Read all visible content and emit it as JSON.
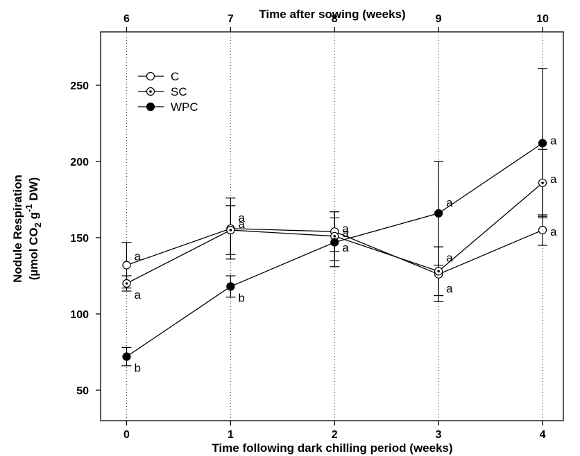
{
  "chart_data": {
    "type": "line",
    "xlabel": "Time following dark chilling period (weeks)",
    "x2label": "Time after sowing (weeks)",
    "ylabel_line1": "Nodule Respiration",
    "ylabel_line2_prefix": "(µmol CO",
    "ylabel_line2_sub": "2",
    "ylabel_line2_mid": " g",
    "ylabel_line2_sup": "-1",
    "ylabel_line2_suffix": " DW)",
    "x": [
      0,
      1,
      2,
      3,
      4
    ],
    "x_ticks": [
      "0",
      "1",
      "2",
      "3",
      "4"
    ],
    "x2_ticks": [
      "6",
      "7",
      "8",
      "9",
      "10"
    ],
    "xlim": [
      -0.25,
      4.2
    ],
    "ylim": [
      30,
      285
    ],
    "y_ticks": [
      50,
      100,
      150,
      200,
      250
    ],
    "vertical_dotted_gridlines": true,
    "legend_position": "top-left",
    "series": [
      {
        "name": "C",
        "marker": "open-circle",
        "values": [
          132,
          156,
          154,
          126,
          155
        ],
        "errors": [
          15,
          20,
          13,
          18,
          10
        ],
        "labels": [
          "a",
          "a",
          "a",
          "a",
          "a"
        ]
      },
      {
        "name": "SC",
        "marker": "dotted-circle",
        "values": [
          120,
          155,
          151,
          128,
          186
        ],
        "errors": [
          5,
          16,
          16,
          16,
          22
        ],
        "labels": [
          "a",
          "a",
          "a",
          "a",
          "a"
        ]
      },
      {
        "name": "WPC",
        "marker": "filled-circle",
        "values": [
          72,
          118,
          147,
          166,
          212
        ],
        "errors": [
          6,
          7,
          16,
          34,
          49
        ],
        "labels": [
          "b",
          "b",
          "a",
          "a",
          "a"
        ]
      }
    ]
  }
}
